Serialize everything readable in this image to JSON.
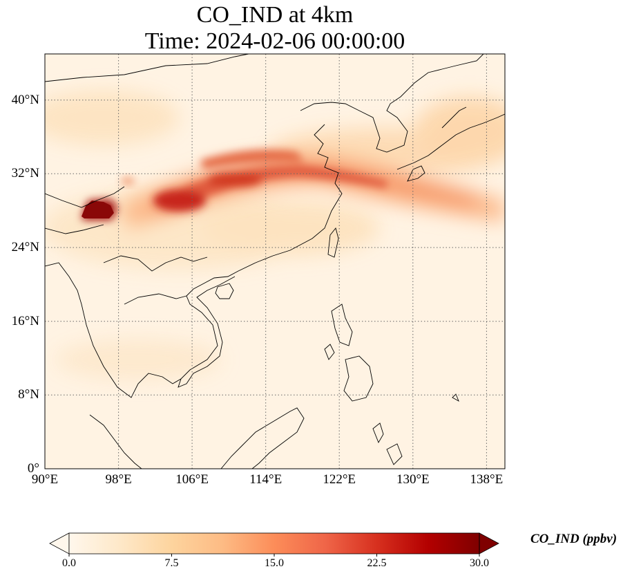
{
  "title_line1": "CO_IND at 4km",
  "title_line2": "Time: 2024-02-06 00:00:00",
  "x_ticks": [
    "90°E",
    "98°E",
    "106°E",
    "114°E",
    "122°E",
    "130°E",
    "138°E"
  ],
  "y_ticks": [
    "40°N",
    "32°N",
    "24°N",
    "16°N",
    "8°N",
    "0°"
  ],
  "colorbar": {
    "label": "CO_IND (ppbv)",
    "ticks": [
      "0.0",
      "7.5",
      "15.0",
      "22.5",
      "30.0"
    ],
    "min": 0,
    "max": 30,
    "extend": "both",
    "colormap": "OrRd",
    "colors": [
      "#fff7ec",
      "#fee8c8",
      "#fdd49e",
      "#fdbb84",
      "#fc8d59",
      "#ef6548",
      "#d7301f",
      "#b30000",
      "#7f0000"
    ]
  },
  "map_extent": {
    "lon_min": 90,
    "lon_max": 140,
    "lat_min": 0,
    "lat_max": 45
  },
  "gridlines": {
    "lons": [
      90,
      98,
      106,
      114,
      122,
      130,
      138
    ],
    "lats": [
      0,
      8,
      16,
      24,
      32,
      40
    ],
    "style": "dotted"
  }
}
